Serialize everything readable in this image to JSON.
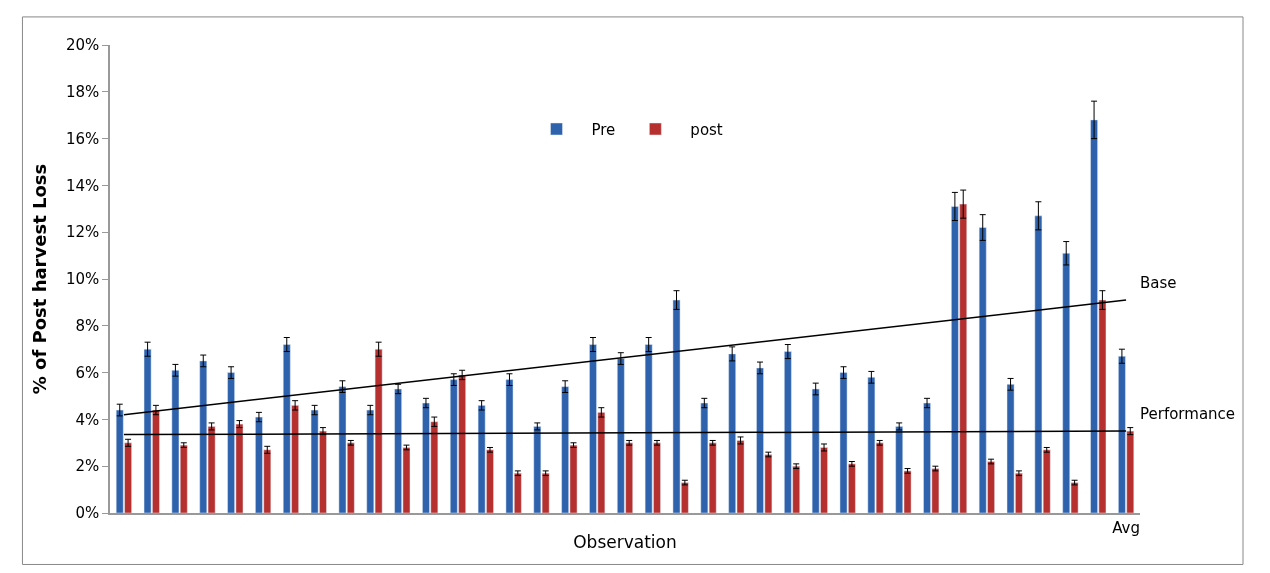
{
  "chart_data": {
    "type": "bar",
    "xlabel": "Observation",
    "ylabel": "% of Post harvest Loss",
    "categories": [
      null,
      null,
      null,
      null,
      null,
      null,
      null,
      null,
      null,
      null,
      null,
      null,
      null,
      null,
      null,
      null,
      null,
      null,
      null,
      null,
      null,
      null,
      null,
      null,
      null,
      null,
      null,
      null,
      null,
      null,
      null,
      null,
      null,
      null,
      null,
      null,
      "Avg"
    ],
    "series": [
      {
        "name": "Pre",
        "color": "#2e62ad",
        "values": [
          4.4,
          7.0,
          6.1,
          6.5,
          6.0,
          4.1,
          7.2,
          4.4,
          5.4,
          4.4,
          5.3,
          4.7,
          5.7,
          4.6,
          5.7,
          3.7,
          5.4,
          7.2,
          6.6,
          7.2,
          9.1,
          4.7,
          6.8,
          6.2,
          6.9,
          5.3,
          6.0,
          5.8,
          3.7,
          4.7,
          13.1,
          12.2,
          5.5,
          12.7,
          11.1,
          16.8,
          6.7
        ],
        "errors": [
          0.25,
          0.3,
          0.25,
          0.25,
          0.25,
          0.2,
          0.3,
          0.2,
          0.25,
          0.2,
          0.2,
          0.2,
          0.25,
          0.2,
          0.25,
          0.15,
          0.25,
          0.3,
          0.25,
          0.3,
          0.4,
          0.2,
          0.3,
          0.25,
          0.3,
          0.25,
          0.25,
          0.25,
          0.15,
          0.2,
          0.6,
          0.55,
          0.25,
          0.6,
          0.5,
          0.8,
          0.3
        ]
      },
      {
        "name": "post",
        "color": "#b5302e",
        "values": [
          3.0,
          4.4,
          2.9,
          3.7,
          3.8,
          2.7,
          4.6,
          3.5,
          3.0,
          7.0,
          2.8,
          3.9,
          5.9,
          2.7,
          1.7,
          1.7,
          2.9,
          4.3,
          3.0,
          3.0,
          1.3,
          3.0,
          3.1,
          2.5,
          2.0,
          2.8,
          2.1,
          3.0,
          1.8,
          1.9,
          13.2,
          2.2,
          1.7,
          2.7,
          1.3,
          9.1,
          3.5
        ],
        "errors": [
          0.15,
          0.2,
          0.1,
          0.15,
          0.15,
          0.15,
          0.2,
          0.15,
          0.1,
          0.3,
          0.1,
          0.2,
          0.2,
          0.1,
          0.1,
          0.1,
          0.1,
          0.2,
          0.1,
          0.1,
          0.1,
          0.1,
          0.15,
          0.1,
          0.1,
          0.15,
          0.1,
          0.1,
          0.1,
          0.1,
          0.6,
          0.1,
          0.1,
          0.1,
          0.1,
          0.4,
          0.15
        ]
      },
      {
        "name": "Base",
        "type": "line",
        "color": "#000000",
        "values": [
          4.2,
          null,
          null,
          null,
          null,
          null,
          null,
          null,
          null,
          null,
          null,
          null,
          null,
          null,
          null,
          null,
          null,
          null,
          null,
          null,
          null,
          null,
          null,
          null,
          null,
          null,
          null,
          null,
          null,
          null,
          null,
          null,
          null,
          null,
          null,
          null,
          9.1
        ]
      },
      {
        "name": "Performance",
        "type": "line",
        "color": "#000000",
        "values": [
          3.35,
          null,
          null,
          null,
          null,
          null,
          null,
          null,
          null,
          null,
          null,
          null,
          null,
          null,
          null,
          null,
          null,
          null,
          null,
          null,
          null,
          null,
          null,
          null,
          null,
          null,
          null,
          null,
          null,
          null,
          null,
          null,
          null,
          null,
          null,
          null,
          3.5
        ]
      }
    ],
    "ylim": [
      0,
      20
    ],
    "yticks": [
      {
        "value": 0,
        "label": "0%"
      },
      {
        "value": 2,
        "label": "2%"
      },
      {
        "value": 4,
        "label": "4%"
      },
      {
        "value": 6,
        "label": "6%"
      },
      {
        "value": 8,
        "label": "8%"
      },
      {
        "value": 10,
        "label": "10%"
      },
      {
        "value": 12,
        "label": "12%"
      },
      {
        "value": 14,
        "label": "14%"
      },
      {
        "value": 16,
        "label": "16%"
      },
      {
        "value": 18,
        "label": "18%"
      },
      {
        "value": 20,
        "label": "20%"
      }
    ],
    "legend": "top"
  }
}
